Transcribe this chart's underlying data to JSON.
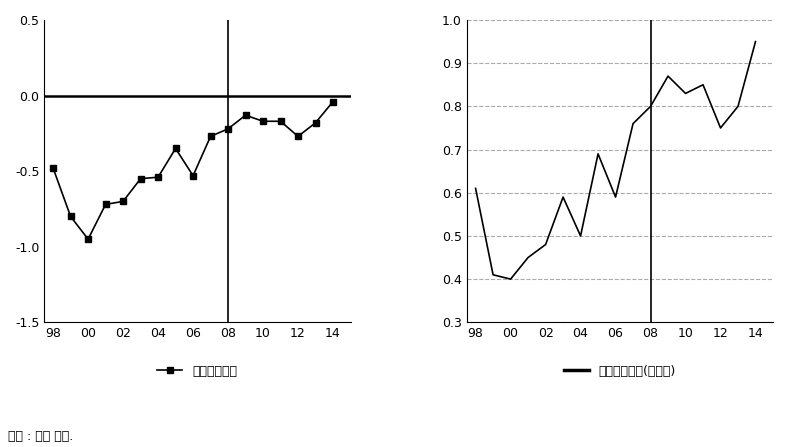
{
  "left_x": [
    0,
    1,
    2,
    3,
    4,
    5,
    6,
    7,
    8,
    9,
    10,
    11,
    12,
    13,
    14,
    15,
    16
  ],
  "left_values": [
    -0.48,
    -0.8,
    -0.95,
    -0.72,
    -0.7,
    -0.55,
    -0.54,
    -0.35,
    -0.53,
    -0.27,
    -0.22,
    -0.13,
    -0.17,
    -0.17,
    -0.27,
    -0.18,
    -0.04
  ],
  "left_ylim": [
    -1.5,
    0.5
  ],
  "left_yticks": [
    -1.5,
    -1.0,
    -0.5,
    0.0,
    0.5
  ],
  "left_ytick_labels": [
    "-1.5",
    "-1.0",
    "-0.5",
    "0.0",
    "0.5"
  ],
  "left_vline_x": 10,
  "left_hline": 0.0,
  "left_legend": "유노조사업장",
  "right_x": [
    0,
    1,
    2,
    3,
    4,
    5,
    6,
    7,
    8,
    9,
    10,
    11,
    12,
    13,
    14,
    15,
    16
  ],
  "right_values": [
    0.61,
    0.41,
    0.4,
    0.45,
    0.48,
    0.59,
    0.5,
    0.69,
    0.59,
    0.76,
    0.8,
    0.87,
    0.83,
    0.85,
    0.75,
    0.8,
    0.95
  ],
  "right_ylim": [
    0.3,
    1.0
  ],
  "right_yticks": [
    0.3,
    0.4,
    0.5,
    0.6,
    0.7,
    0.8,
    0.9,
    1.0
  ],
  "right_ytick_labels": [
    "0.3",
    "0.4",
    "0.5",
    "0.6",
    "0.7",
    "0.8",
    "0.9",
    "1.0"
  ],
  "right_vline_x": 10,
  "right_legend": "유노조사업장(승산비)",
  "xtick_positions": [
    0,
    2,
    4,
    6,
    8,
    10,
    12,
    14,
    16
  ],
  "xticklabels": [
    "98",
    "00",
    "02",
    "04",
    "06",
    "08",
    "10",
    "12",
    "14"
  ],
  "xlim": [
    -0.5,
    17
  ],
  "footnote": "자료 : 필자 작성.",
  "line_color": "#000000",
  "grid_color": "#aaaaaa",
  "hline_color": "#000000",
  "vline_color": "#000000",
  "marker": "s",
  "marker_size": 4,
  "line_width": 1.2
}
